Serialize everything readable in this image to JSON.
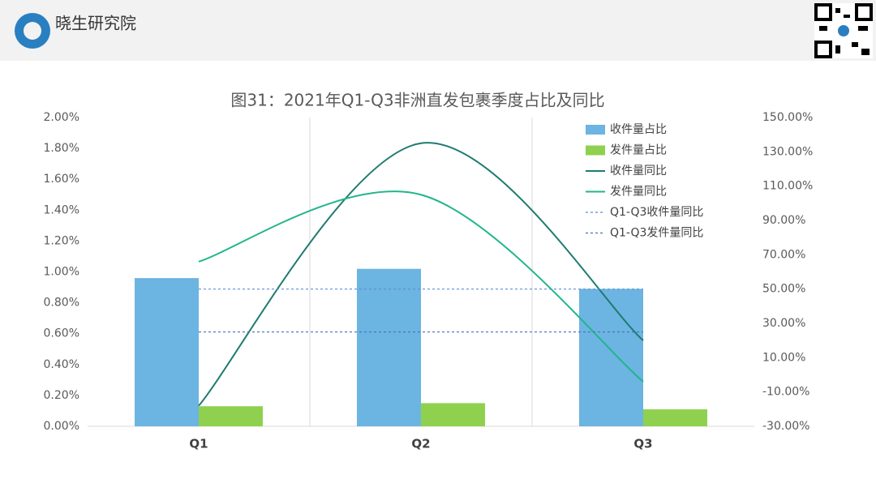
{
  "header": {
    "brand": "晓生研究院"
  },
  "chart_data": {
    "type": "bar-line",
    "title": "图31：2021年Q1-Q3非洲直发包裹季度占比及同比",
    "categories": [
      "Q1",
      "Q2",
      "Q3"
    ],
    "series": [
      {
        "name": "收件量占比",
        "kind": "bar",
        "color": "#6cb4e1",
        "values": [
          0.96,
          1.02,
          0.89
        ]
      },
      {
        "name": "发件量占比",
        "kind": "bar",
        "color": "#8fd14f",
        "values": [
          0.13,
          0.15,
          0.11
        ]
      },
      {
        "name": "收件量同比",
        "kind": "line",
        "axis": "y2",
        "color": "#1e7b70",
        "values": [
          -18,
          135,
          20
        ]
      },
      {
        "name": "发件量同比",
        "kind": "line",
        "axis": "y2",
        "color": "#22b58c",
        "values": [
          66,
          105,
          -4
        ]
      },
      {
        "name": "Q1-Q3收件量同比",
        "kind": "line",
        "axis": "y2",
        "dashed": true,
        "color": "#5b8fd0",
        "values": [
          50,
          50,
          50
        ]
      },
      {
        "name": "Q1-Q3发件量同比",
        "kind": "line",
        "axis": "y2",
        "dashed": true,
        "color": "#4a6fb8",
        "values": [
          25,
          25,
          25
        ]
      }
    ],
    "ylim": [
      0,
      2
    ],
    "yticks": [
      {
        "value": 0,
        "label": "0.00%"
      },
      {
        "value": 0.2,
        "label": "0.20%"
      },
      {
        "value": 0.4,
        "label": "0.40%"
      },
      {
        "value": 0.6,
        "label": "0.60%"
      },
      {
        "value": 0.8,
        "label": "0.80%"
      },
      {
        "value": 1,
        "label": "1.00%"
      },
      {
        "value": 1.2,
        "label": "1.20%"
      },
      {
        "value": 1.4,
        "label": "1.40%"
      },
      {
        "value": 1.6,
        "label": "1.60%"
      },
      {
        "value": 1.8,
        "label": "1.80%"
      },
      {
        "value": 2,
        "label": "2.00%"
      }
    ],
    "y2lim": [
      -30,
      150
    ],
    "y2ticks": [
      {
        "value": -30,
        "label": "-30.00%"
      },
      {
        "value": -10,
        "label": "-10.00%"
      },
      {
        "value": 10,
        "label": "10.00%"
      },
      {
        "value": 30,
        "label": "30.00%"
      },
      {
        "value": 50,
        "label": "50.00%"
      },
      {
        "value": 70,
        "label": "70.00%"
      },
      {
        "value": 90,
        "label": "90.00%"
      },
      {
        "value": 110,
        "label": "110.00%"
      },
      {
        "value": 130,
        "label": "130.00%"
      },
      {
        "value": 150,
        "label": "150.00%"
      }
    ],
    "legend": "upper right"
  }
}
